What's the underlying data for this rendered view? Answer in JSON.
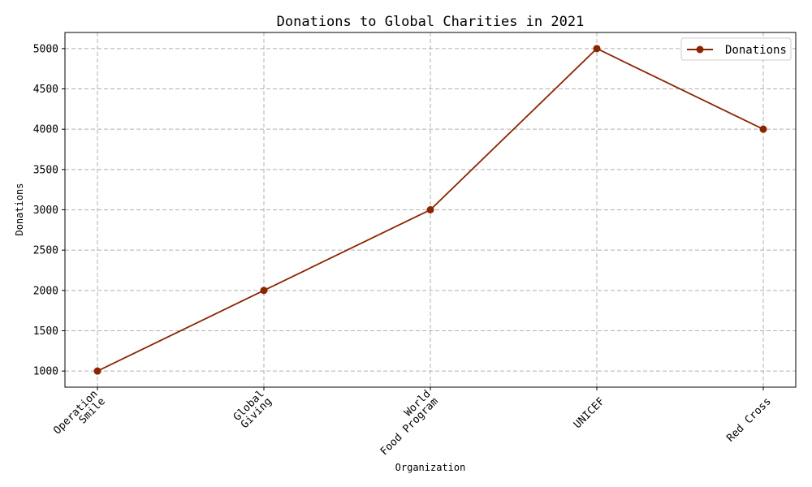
{
  "chart_data": {
    "type": "line",
    "title": "Donations to Global Charities in 2021",
    "xlabel": "Organization",
    "ylabel": "Donations",
    "categories": [
      "Operation\nSmile",
      "Global\nGiving",
      "World\nFood Program",
      "UNICEF",
      "Red Cross"
    ],
    "series": [
      {
        "name": "Donations",
        "values": [
          1000,
          2000,
          3000,
          5000,
          4000
        ],
        "color": "#8b2500"
      }
    ],
    "ylim": [
      800,
      5200
    ],
    "yticks": [
      1000,
      1500,
      2000,
      2500,
      3000,
      3500,
      4000,
      4500,
      5000
    ],
    "grid": true,
    "legend_position": "top-right"
  }
}
